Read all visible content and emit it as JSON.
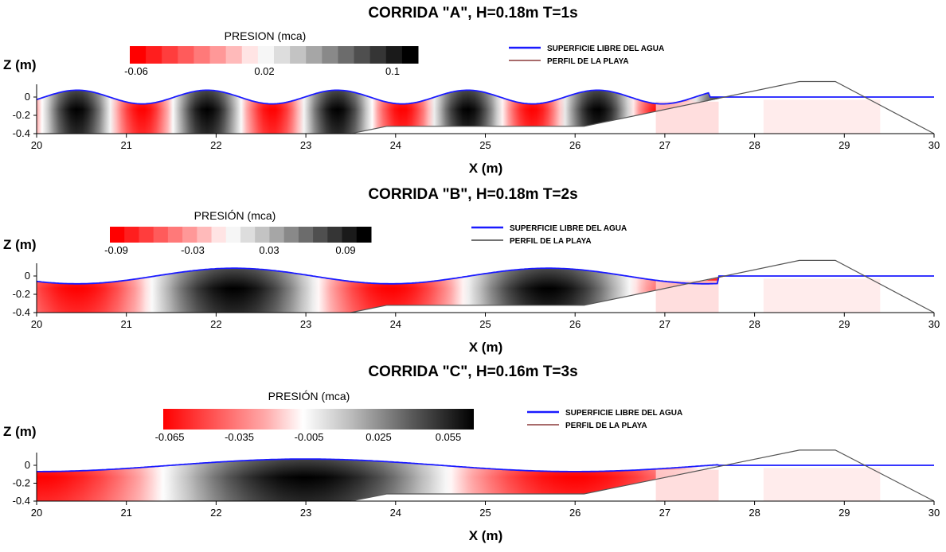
{
  "chart_data": [
    {
      "type": "area",
      "title": "CORRIDA \"A\", H=0.18m T=1s",
      "xlabel": "X (m)",
      "ylabel": "Z (m)",
      "xlim": [
        20,
        30
      ],
      "ylim": [
        -0.4,
        0.1
      ],
      "xticks": [
        "20",
        "21",
        "22",
        "23",
        "24",
        "25",
        "26",
        "27",
        "28",
        "29",
        "30"
      ],
      "yticks": [
        "0",
        "-0.2",
        "-0.4"
      ],
      "colorbar": {
        "title": "PRESION (mca)",
        "labels": [
          "-0.06",
          "0.02",
          "0.1"
        ],
        "range": [
          -0.06,
          0.12
        ],
        "style": "discrete"
      },
      "legend": {
        "position": "top-right",
        "entries": [
          {
            "label": "SUPERFICIE LIBRE DEL AGUA",
            "color": "#1a1aff"
          },
          {
            "label": "PERFIL DE LA PLAYA",
            "color": "#8b3a3a"
          }
        ]
      },
      "wave": {
        "amplitude": 0.075,
        "period_m": 1.45,
        "crest_x": 20.45,
        "end_x": 27.5
      },
      "beach_profile": {
        "x": [
          23.5,
          23.9,
          26.1,
          28.5,
          28.9,
          30.0
        ],
        "y": [
          -0.4,
          -0.32,
          -0.32,
          0.17,
          0.17,
          -0.4
        ]
      }
    },
    {
      "type": "area",
      "title": "CORRIDA \"B\", H=0.18m T=2s",
      "xlabel": "X (m)",
      "ylabel": "Z (m)",
      "xlim": [
        20,
        30
      ],
      "ylim": [
        -0.4,
        0.1
      ],
      "xticks": [
        "20",
        "21",
        "22",
        "23",
        "24",
        "25",
        "26",
        "27",
        "28",
        "29",
        "30"
      ],
      "yticks": [
        "0",
        "-0.2",
        "-0.4"
      ],
      "colorbar": {
        "title": "PRESIÓN (mca)",
        "labels": [
          "-0.09",
          "-0.03",
          "0.03",
          "0.09"
        ],
        "range": [
          -0.09,
          0.12
        ],
        "style": "discrete"
      },
      "legend": {
        "position": "top-right",
        "entries": [
          {
            "label": "SUPERFICIE LIBRE DEL AGUA",
            "color": "#1a1aff"
          },
          {
            "label": "PERFIL DE LA PLAYA",
            "color": "#444444"
          }
        ]
      },
      "wave": {
        "amplitude": 0.085,
        "period_m": 3.5,
        "crest_x": 22.2,
        "end_x": 27.6
      },
      "beach_profile": {
        "x": [
          23.5,
          23.9,
          26.1,
          28.5,
          28.9,
          30.0
        ],
        "y": [
          -0.4,
          -0.32,
          -0.32,
          0.17,
          0.17,
          -0.4
        ]
      }
    },
    {
      "type": "area",
      "title": "CORRIDA \"C\", H=0.16m T=3s",
      "xlabel": "X (m)",
      "ylabel": "Z (m)",
      "xlim": [
        20,
        30
      ],
      "ylim": [
        -0.4,
        0.1
      ],
      "xticks": [
        "20",
        "21",
        "22",
        "23",
        "24",
        "25",
        "26",
        "27",
        "28",
        "29",
        "30"
      ],
      "yticks": [
        "0",
        "-0.2",
        "-0.4"
      ],
      "colorbar": {
        "title": "PRESIÓN (mca)",
        "labels": [
          "-0.065",
          "-0.035",
          "-0.005",
          "0.025",
          "0.055"
        ],
        "range": [
          -0.08,
          0.07
        ],
        "style": "continuous"
      },
      "legend": {
        "position": "top-right",
        "entries": [
          {
            "label": "SUPERFICIE LIBRE DEL AGUA",
            "color": "#1a1aff"
          },
          {
            "label": "PERFIL DE LA PLAYA",
            "color": "#8b3a3a"
          }
        ]
      },
      "wave": {
        "amplitude": 0.07,
        "period_m": 6.0,
        "crest_x": 23.0,
        "end_x": 27.6
      },
      "beach_profile": {
        "x": [
          23.5,
          23.9,
          26.1,
          28.5,
          28.9,
          30.0
        ],
        "y": [
          -0.4,
          -0.32,
          -0.32,
          0.17,
          0.17,
          -0.4
        ]
      }
    }
  ]
}
